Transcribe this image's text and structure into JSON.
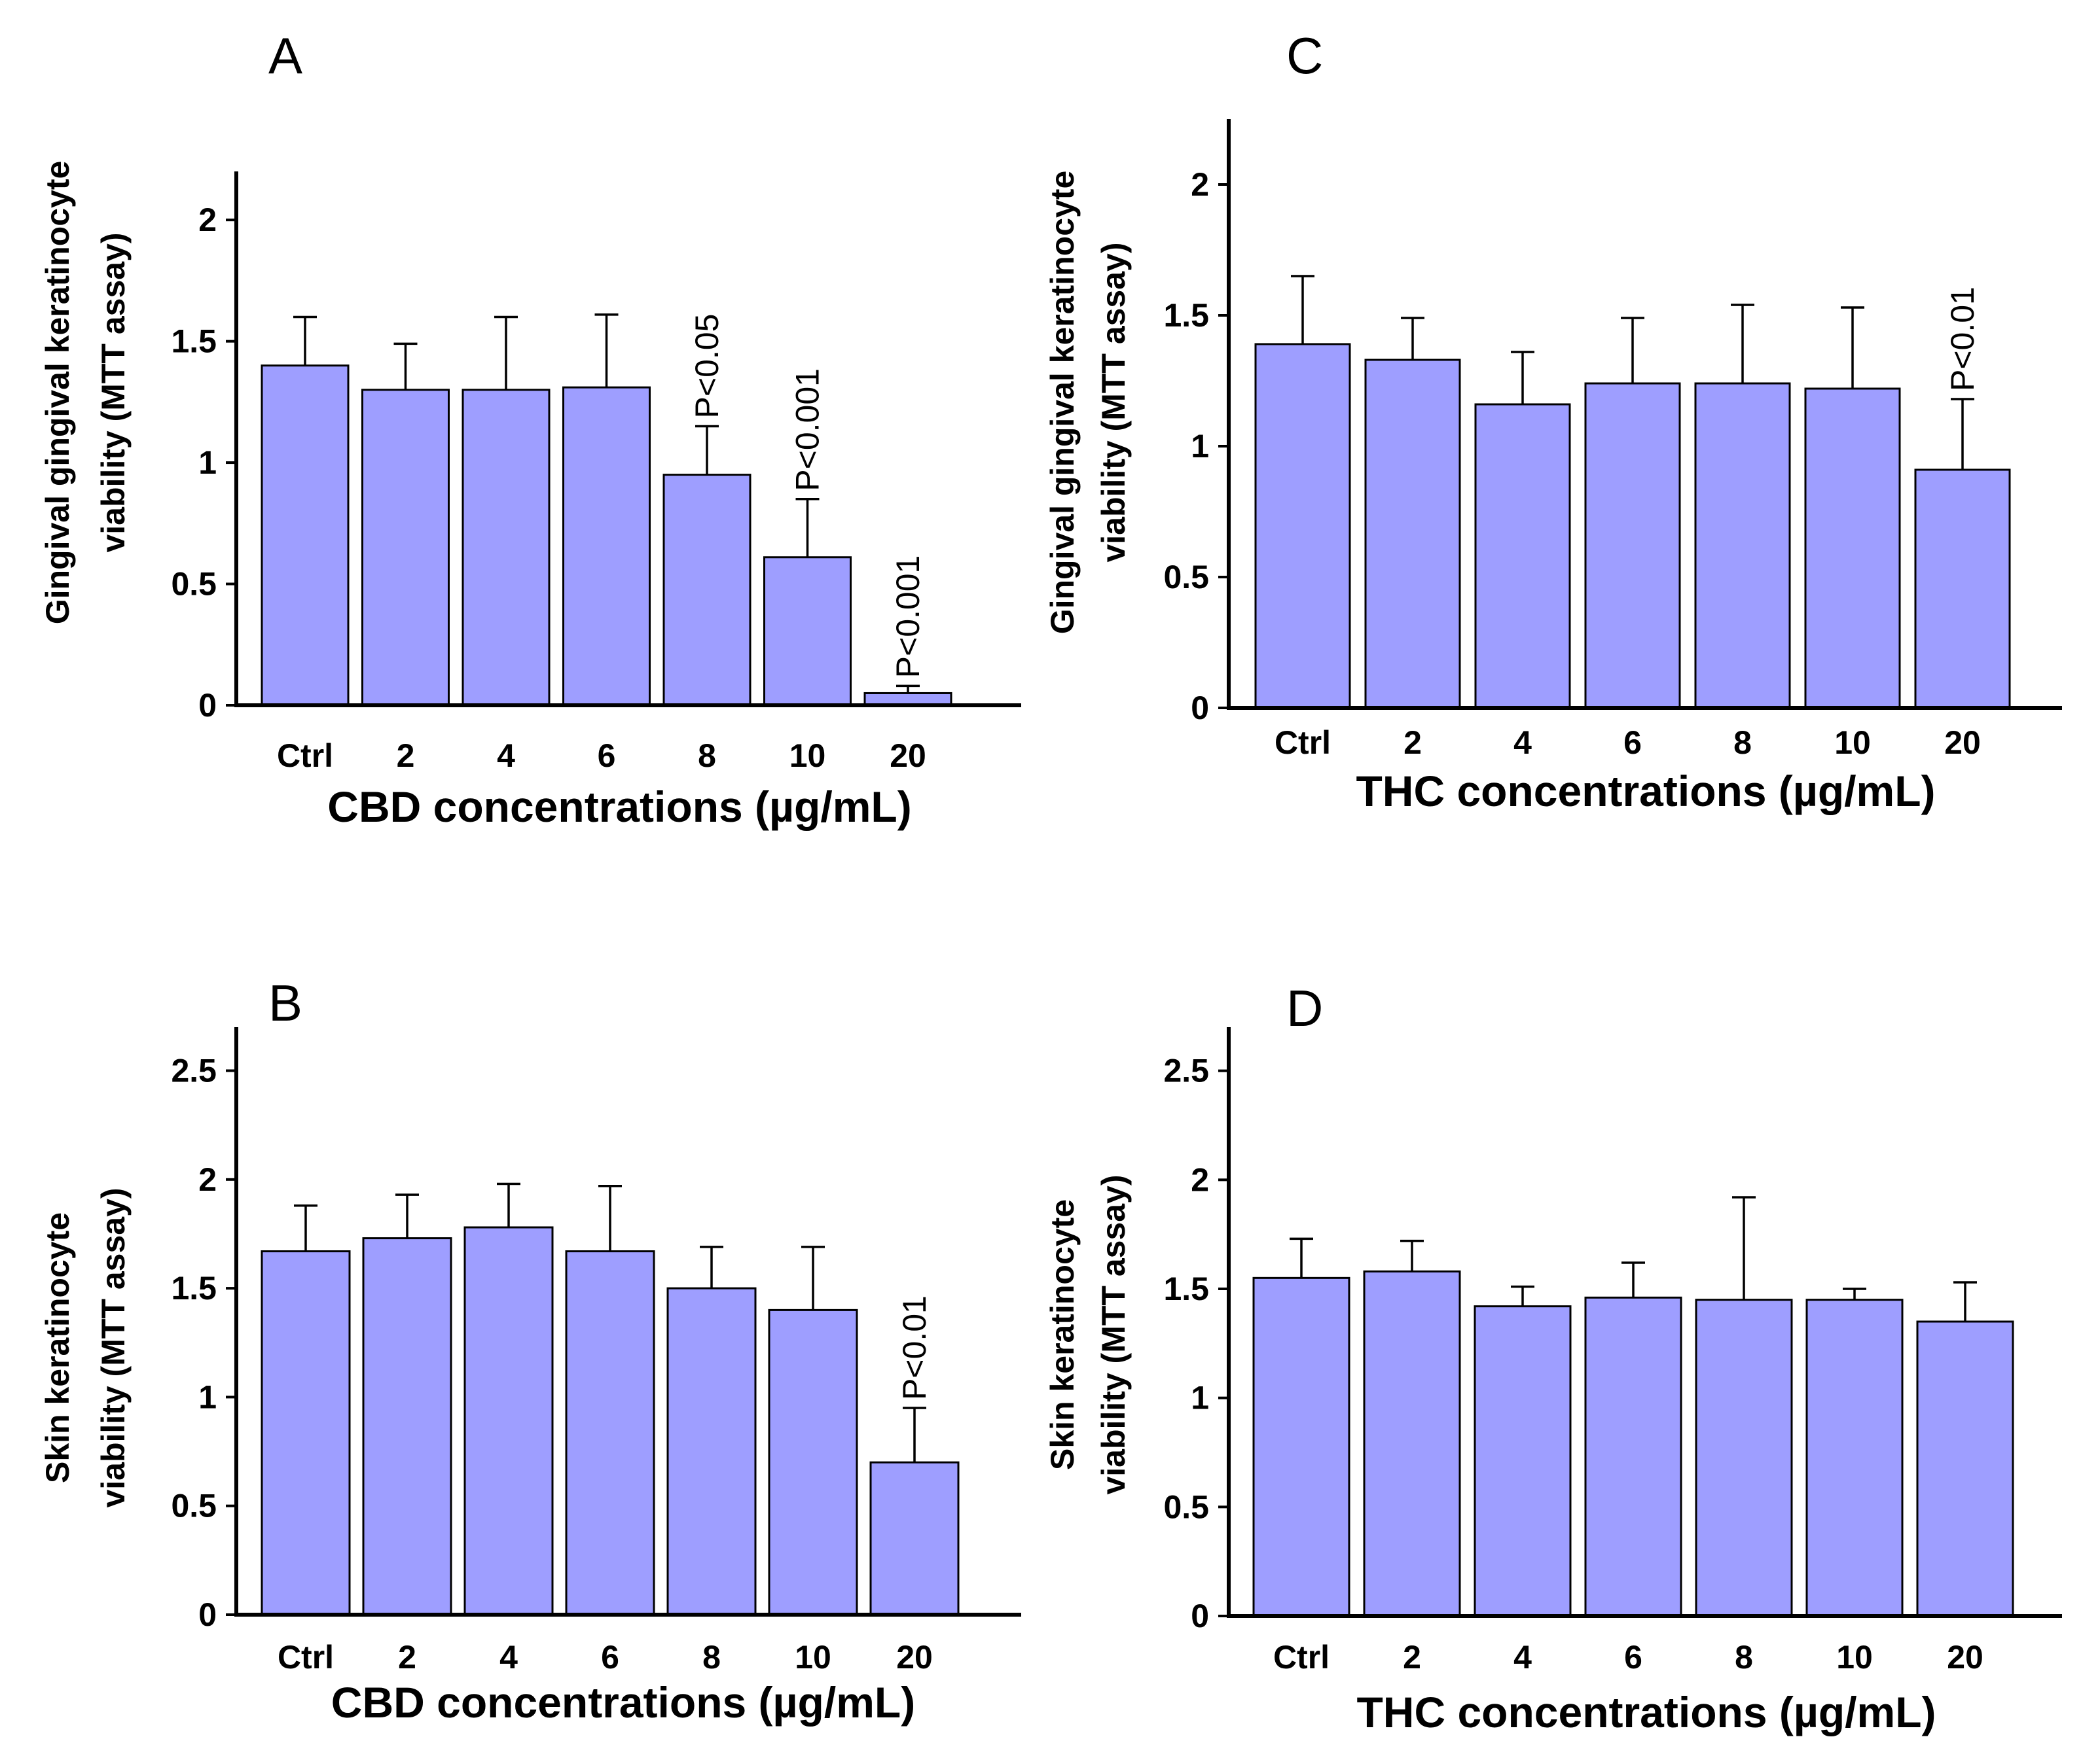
{
  "chart_data": [
    {
      "id": "A",
      "type": "bar",
      "panel_label": "A",
      "ylabel_lines": [
        "Gingival gingival keratinocyte",
        "viability (MTT assay)"
      ],
      "xlabel": "CBD concentrations (µg/mL)",
      "categories": [
        "Ctrl",
        "2",
        "4",
        "6",
        "8",
        "10",
        "20"
      ],
      "values": [
        1.4,
        1.3,
        1.3,
        1.31,
        0.95,
        0.61,
        0.05
      ],
      "errors": [
        0.2,
        0.19,
        0.3,
        0.3,
        0.2,
        0.24,
        0.03
      ],
      "annotations": [
        "",
        "",
        "",
        "",
        "P<0.05",
        "P<0.001",
        "P<0.001"
      ],
      "yticks": [
        "0",
        "0.5",
        "1",
        "1.5",
        "2"
      ],
      "ytick_values": [
        0,
        0.5,
        1,
        1.5,
        2
      ],
      "ylim": [
        0,
        2.2
      ]
    },
    {
      "id": "C",
      "type": "bar",
      "panel_label": "C",
      "ylabel_lines": [
        "Gingival gingival keratinocyte",
        "viability (MTT assay)"
      ],
      "xlabel": "THC concentrations (µg/mL)",
      "categories": [
        "Ctrl",
        "2",
        "4",
        "6",
        "8",
        "10",
        "20"
      ],
      "values": [
        1.39,
        1.33,
        1.16,
        1.24,
        1.24,
        1.22,
        0.91
      ],
      "errors": [
        0.26,
        0.16,
        0.2,
        0.25,
        0.3,
        0.31,
        0.27
      ],
      "annotations": [
        "",
        "",
        "",
        "",
        "",
        "",
        "P<0.01"
      ],
      "yticks": [
        "0",
        "0.5",
        "1",
        "1.5",
        "2"
      ],
      "ytick_values": [
        0,
        0.5,
        1,
        1.5,
        2
      ],
      "ylim": [
        0,
        2.25
      ]
    },
    {
      "id": "B",
      "type": "bar",
      "panel_label": "B",
      "ylabel_lines": [
        "Skin keratinocyte",
        "viability (MTT assay)"
      ],
      "xlabel": "CBD concentrations (µg/mL)",
      "categories": [
        "Ctrl",
        "2",
        "4",
        "6",
        "8",
        "10",
        "20"
      ],
      "values": [
        1.67,
        1.73,
        1.78,
        1.67,
        1.5,
        1.4,
        0.7
      ],
      "errors": [
        0.21,
        0.2,
        0.2,
        0.3,
        0.19,
        0.29,
        0.25
      ],
      "annotations": [
        "",
        "",
        "",
        "",
        "",
        "",
        "P<0.01"
      ],
      "yticks": [
        "0",
        "0.5",
        "1",
        "1.5",
        "2",
        "2.5"
      ],
      "ytick_values": [
        0,
        0.5,
        1,
        1.5,
        2,
        2.5
      ],
      "ylim": [
        0,
        2.7
      ]
    },
    {
      "id": "D",
      "type": "bar",
      "panel_label": "D",
      "ylabel_lines": [
        "Skin keratinocyte",
        "viability (MTT assay)"
      ],
      "xlabel": "THC concentrations (µg/mL)",
      "categories": [
        "Ctrl",
        "2",
        "4",
        "6",
        "8",
        "10",
        "20"
      ],
      "values": [
        1.55,
        1.58,
        1.42,
        1.46,
        1.45,
        1.45,
        1.35
      ],
      "errors": [
        0.18,
        0.14,
        0.09,
        0.16,
        0.47,
        0.05,
        0.18
      ],
      "annotations": [
        "",
        "",
        "",
        "",
        "",
        "",
        ""
      ],
      "yticks": [
        "0",
        "0.5",
        "1",
        "1.5",
        "2",
        "2.5"
      ],
      "ytick_values": [
        0,
        0.5,
        1,
        1.5,
        2,
        2.5
      ],
      "ylim": [
        0,
        2.7
      ]
    }
  ]
}
